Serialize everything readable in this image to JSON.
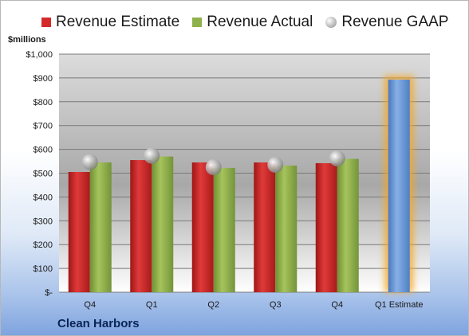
{
  "legend": [
    {
      "label": "Revenue Estimate",
      "color": "#d42a2a",
      "shape": "square"
    },
    {
      "label": "Revenue Actual",
      "color": "#8fb04a",
      "shape": "square"
    },
    {
      "label": "Revenue GAAP",
      "color": "#b8b8b8",
      "shape": "circle"
    }
  ],
  "unit_label": "$millions",
  "company": "Clean Harbors",
  "chart_data": {
    "type": "bar",
    "categories": [
      "Q4",
      "Q1",
      "Q2",
      "Q3",
      "Q4",
      "Q1 Estimate"
    ],
    "series": [
      {
        "name": "Revenue Estimate",
        "values": [
          505,
          555,
          545,
          545,
          542,
          null
        ],
        "color": "#d42a2a"
      },
      {
        "name": "Revenue Actual",
        "values": [
          545,
          570,
          522,
          532,
          560,
          null
        ],
        "color": "#8fb04a"
      },
      {
        "name": "Revenue GAAP",
        "values": [
          547,
          573,
          525,
          535,
          562,
          null
        ],
        "color": "#b8b8b8",
        "marker": "circle"
      },
      {
        "name": "Q1 Estimate",
        "values": [
          null,
          null,
          null,
          null,
          null,
          893
        ],
        "color": "#6a9ad6",
        "highlight": "#f5a623"
      }
    ],
    "ylim": [
      0,
      1000
    ],
    "yticks": [
      0,
      100,
      200,
      300,
      400,
      500,
      600,
      700,
      800,
      900,
      1000
    ],
    "ytick_labels": [
      "$-",
      "$100",
      "$200",
      "$300",
      "$400",
      "$500",
      "$600",
      "$700",
      "$800",
      "$900",
      "$1,000"
    ],
    "grid": true
  }
}
